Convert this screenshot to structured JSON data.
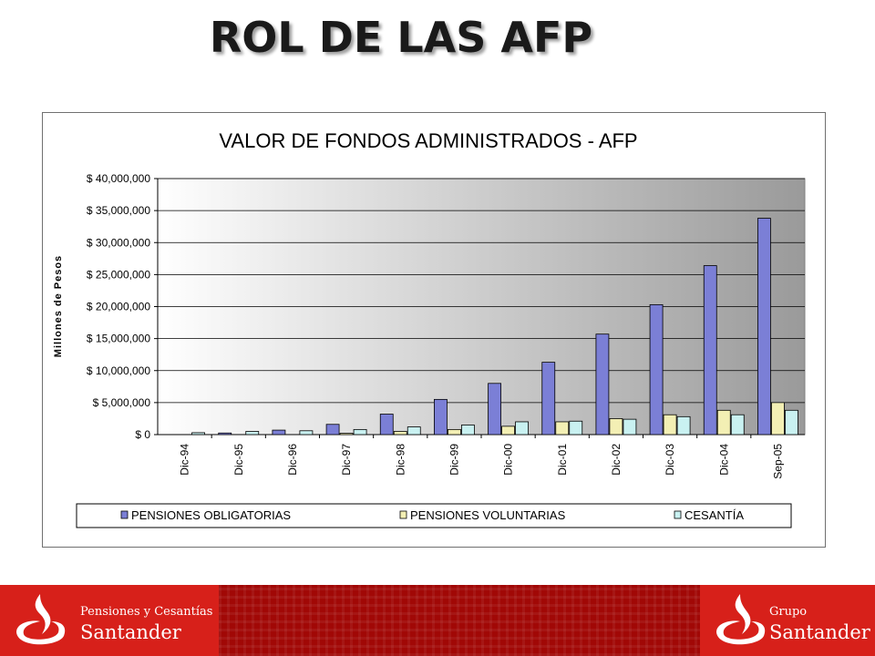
{
  "slide_title": "ROL DE LAS AFP",
  "chart_data": {
    "type": "bar",
    "title": "VALOR DE FONDOS ADMINISTRADOS - AFP",
    "xlabel": "",
    "ylabel": "Millones de Pesos",
    "ylim": [
      0,
      40000000
    ],
    "y_ticks": [
      "$ 0",
      "$ 5,000,000",
      "$ 10,000,000",
      "$ 15,000,000",
      "$ 20,000,000",
      "$ 25,000,000",
      "$ 30,000,000",
      "$ 35,000,000",
      "$ 40,000,000"
    ],
    "categories": [
      "Dic-94",
      "Dic-95",
      "Dic-96",
      "Dic-97",
      "Dic-98",
      "Dic-99",
      "Dic-00",
      "Dic-01",
      "Dic-02",
      "Dic-03",
      "Dic-04",
      "Sep-05"
    ],
    "grid": true,
    "legend_position": "bottom",
    "series": [
      {
        "name": "PENSIONES OBLIGATORIAS",
        "color": "#7b7fd6",
        "values": [
          0,
          250000,
          700000,
          1600000,
          3200000,
          5500000,
          8000000,
          11300000,
          15700000,
          20300000,
          26400000,
          33800000
        ]
      },
      {
        "name": "PENSIONES VOLUNTARIAS",
        "color": "#f3efb4",
        "values": [
          0,
          0,
          0,
          200000,
          500000,
          800000,
          1300000,
          2000000,
          2500000,
          3100000,
          3800000,
          5000000
        ]
      },
      {
        "name": "CESANTÍA",
        "color": "#c9f1f1",
        "values": [
          300000,
          500000,
          600000,
          800000,
          1200000,
          1500000,
          2000000,
          2100000,
          2400000,
          2800000,
          3100000,
          3800000
        ]
      }
    ]
  },
  "footer": {
    "left_brand_line1": "Pensiones y Cesantías",
    "left_brand_line2": "Santander",
    "right_brand_line1": "Grupo",
    "right_brand_line2": "Santander",
    "brand_color": "#d7201a"
  }
}
